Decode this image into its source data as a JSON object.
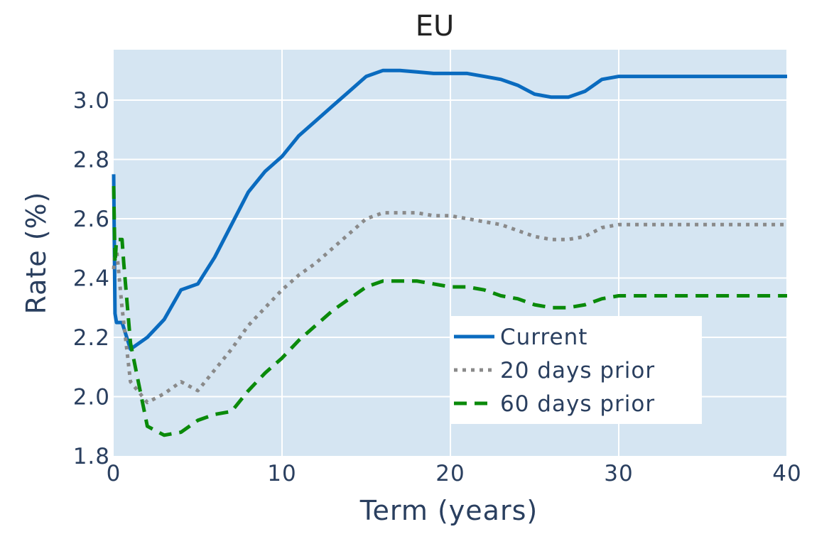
{
  "chart_data": {
    "type": "line",
    "title": "EU",
    "xlabel": "Term (years)",
    "ylabel": "Rate (%)",
    "xlim": [
      0,
      40
    ],
    "ylim": [
      1.8,
      3.17
    ],
    "x_ticks": [
      0,
      10,
      20,
      30,
      40
    ],
    "x_tick_labels": [
      "0",
      "10",
      "20",
      "30",
      "40"
    ],
    "y_ticks": [
      1.8,
      2.0,
      2.2,
      2.4,
      2.6,
      2.8,
      3.0
    ],
    "y_tick_labels": [
      "1.8",
      "2.0",
      "2.2",
      "2.4",
      "2.6",
      "2.8",
      "3.0"
    ],
    "grid": true,
    "plot_background": "#d5e5f2",
    "grid_color": "#ffffff",
    "legend_position": "bottom-right",
    "series": [
      {
        "name": "Current",
        "color": "#0a6bbf",
        "dash": "solid",
        "points": [
          [
            0.0,
            2.75
          ],
          [
            0.08,
            2.28
          ],
          [
            0.17,
            2.25
          ],
          [
            0.5,
            2.25
          ],
          [
            1.0,
            2.16
          ],
          [
            2.0,
            2.2
          ],
          [
            3.0,
            2.26
          ],
          [
            4.0,
            2.36
          ],
          [
            5.0,
            2.38
          ],
          [
            6.0,
            2.47
          ],
          [
            7.0,
            2.58
          ],
          [
            8.0,
            2.69
          ],
          [
            9.0,
            2.76
          ],
          [
            10.0,
            2.81
          ],
          [
            11.0,
            2.88
          ],
          [
            12.0,
            2.93
          ],
          [
            13.0,
            2.98
          ],
          [
            14.0,
            3.03
          ],
          [
            15.0,
            3.08
          ],
          [
            16.0,
            3.1
          ],
          [
            17.0,
            3.1
          ],
          [
            18.0,
            3.095
          ],
          [
            19.0,
            3.09
          ],
          [
            20.0,
            3.09
          ],
          [
            21.0,
            3.09
          ],
          [
            22.0,
            3.08
          ],
          [
            23.0,
            3.07
          ],
          [
            24.0,
            3.05
          ],
          [
            25.0,
            3.02
          ],
          [
            26.0,
            3.01
          ],
          [
            27.0,
            3.01
          ],
          [
            28.0,
            3.03
          ],
          [
            29.0,
            3.07
          ],
          [
            30.0,
            3.08
          ],
          [
            35.0,
            3.08
          ],
          [
            40.0,
            3.08
          ]
        ]
      },
      {
        "name": "20 days prior",
        "color": "#8a8a8a",
        "dash": "dot",
        "points": [
          [
            0.0,
            2.43
          ],
          [
            0.08,
            2.49
          ],
          [
            0.17,
            2.5
          ],
          [
            0.5,
            2.3
          ],
          [
            1.0,
            2.05
          ],
          [
            2.0,
            1.98
          ],
          [
            3.0,
            2.01
          ],
          [
            4.0,
            2.05
          ],
          [
            5.0,
            2.02
          ],
          [
            6.0,
            2.09
          ],
          [
            7.0,
            2.16
          ],
          [
            8.0,
            2.24
          ],
          [
            9.0,
            2.3
          ],
          [
            10.0,
            2.36
          ],
          [
            11.0,
            2.41
          ],
          [
            12.0,
            2.45
          ],
          [
            13.0,
            2.5
          ],
          [
            14.0,
            2.55
          ],
          [
            15.0,
            2.6
          ],
          [
            16.0,
            2.62
          ],
          [
            17.0,
            2.62
          ],
          [
            18.0,
            2.62
          ],
          [
            19.0,
            2.61
          ],
          [
            20.0,
            2.61
          ],
          [
            21.0,
            2.6
          ],
          [
            22.0,
            2.59
          ],
          [
            23.0,
            2.58
          ],
          [
            24.0,
            2.56
          ],
          [
            25.0,
            2.54
          ],
          [
            26.0,
            2.53
          ],
          [
            27.0,
            2.53
          ],
          [
            28.0,
            2.54
          ],
          [
            29.0,
            2.57
          ],
          [
            30.0,
            2.58
          ],
          [
            35.0,
            2.58
          ],
          [
            40.0,
            2.58
          ]
        ]
      },
      {
        "name": "60 days prior",
        "color": "#0a8a0a",
        "dash": "dash",
        "points": [
          [
            0.0,
            2.71
          ],
          [
            0.08,
            2.45
          ],
          [
            0.17,
            2.53
          ],
          [
            0.5,
            2.53
          ],
          [
            0.6,
            2.45
          ],
          [
            1.0,
            2.18
          ],
          [
            2.0,
            1.9
          ],
          [
            3.0,
            1.87
          ],
          [
            4.0,
            1.88
          ],
          [
            5.0,
            1.92
          ],
          [
            6.0,
            1.94
          ],
          [
            7.0,
            1.95
          ],
          [
            8.0,
            2.02
          ],
          [
            9.0,
            2.08
          ],
          [
            10.0,
            2.13
          ],
          [
            11.0,
            2.19
          ],
          [
            12.0,
            2.24
          ],
          [
            13.0,
            2.29
          ],
          [
            14.0,
            2.33
          ],
          [
            15.0,
            2.37
          ],
          [
            16.0,
            2.39
          ],
          [
            17.0,
            2.39
          ],
          [
            18.0,
            2.39
          ],
          [
            19.0,
            2.38
          ],
          [
            20.0,
            2.37
          ],
          [
            21.0,
            2.37
          ],
          [
            22.0,
            2.36
          ],
          [
            23.0,
            2.34
          ],
          [
            24.0,
            2.33
          ],
          [
            25.0,
            2.31
          ],
          [
            26.0,
            2.3
          ],
          [
            27.0,
            2.3
          ],
          [
            28.0,
            2.31
          ],
          [
            29.0,
            2.33
          ],
          [
            30.0,
            2.34
          ],
          [
            35.0,
            2.34
          ],
          [
            40.0,
            2.34
          ]
        ]
      }
    ]
  }
}
